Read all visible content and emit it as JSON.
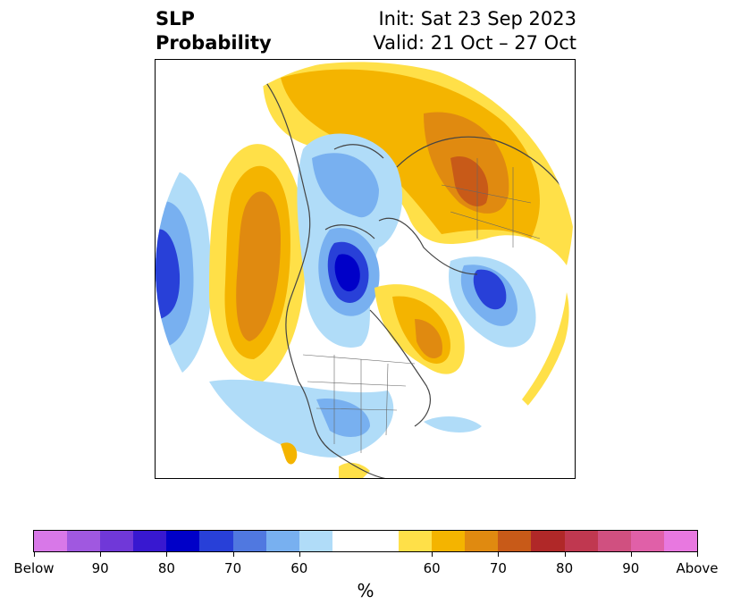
{
  "title": {
    "left_line1": "SLP",
    "left_line2": "Probability",
    "right_line1": "Init: Sat 23 Sep 2023",
    "right_line2": "Valid: 21 Oct – 27 Oct"
  },
  "colorbar": {
    "unit": "%",
    "colors": [
      "#d878e8",
      "#a058e0",
      "#7038d8",
      "#3818d0",
      "#0000c8",
      "#2840d8",
      "#5078e0",
      "#78b0f0",
      "#b0dcf8",
      "#ffffff",
      "#ffffff",
      "#ffe048",
      "#f4b400",
      "#e08a10",
      "#c85a18",
      "#b02828",
      "#c03850",
      "#d05080",
      "#e060a8",
      "#e878e0"
    ],
    "tick_labels": [
      "Below",
      "90",
      "80",
      "70",
      "60",
      "60",
      "70",
      "80",
      "90",
      "Above"
    ]
  },
  "map": {
    "projection": "polar stereographic (Northern Hemisphere)",
    "below_color": "#2840d8",
    "above_color": "#e08a10"
  }
}
